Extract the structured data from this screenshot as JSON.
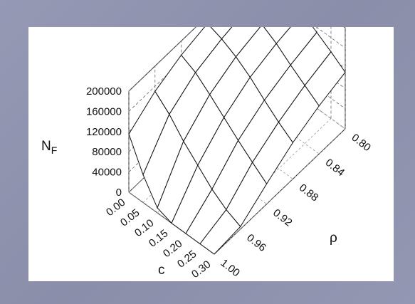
{
  "chart_data": {
    "type": "surface-3d",
    "title": "",
    "z_axis": {
      "label": "N",
      "label_subscript": "F",
      "ticks": [
        "200000",
        "160000",
        "120000",
        "80000",
        "40000",
        "0"
      ],
      "range": [
        0,
        200000
      ]
    },
    "c_axis": {
      "label": "c",
      "ticks": [
        "0.00",
        "0.05",
        "0.10",
        "0.15",
        "0.20",
        "0.25",
        "0.30"
      ],
      "range": [
        0.0,
        0.3
      ]
    },
    "rho_axis": {
      "label": "ρ",
      "ticks": [
        "1.00",
        "0.96",
        "0.92",
        "0.88",
        "0.84",
        "0.80"
      ],
      "range": [
        1.0,
        0.8
      ]
    },
    "c_values": [
      0.0,
      0.05,
      0.1,
      0.15,
      0.2,
      0.25,
      0.3
    ],
    "rho_values": [
      1.0,
      0.96,
      0.92,
      0.88,
      0.84,
      0.8
    ],
    "surface_z": [
      [
        115000,
        150000,
        172000,
        185000,
        193000,
        198000
      ],
      [
        55000,
        125000,
        158000,
        175000,
        186000,
        193000
      ],
      [
        10000,
        92000,
        135000,
        160000,
        174000,
        183000
      ],
      [
        0,
        65000,
        110000,
        140000,
        157000,
        168000
      ],
      [
        0,
        38000,
        85000,
        115000,
        135000,
        150000
      ],
      [
        0,
        18000,
        62000,
        92000,
        115000,
        132000
      ],
      [
        0,
        5000,
        40000,
        72000,
        95000,
        112000
      ]
    ],
    "grid": true
  }
}
